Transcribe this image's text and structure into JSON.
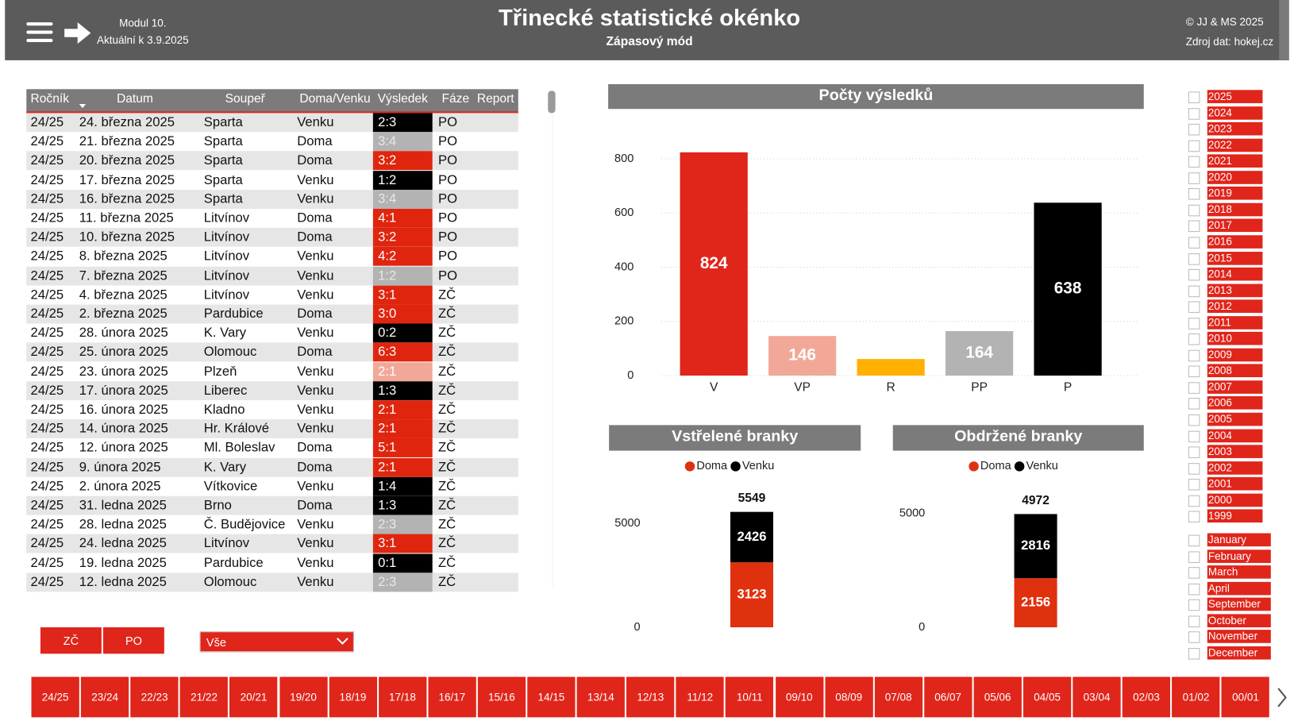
{
  "header": {
    "module": "Modul 10.",
    "updated": "Aktuální k 3.9.2025",
    "title": "Třinecké statistické okénko",
    "subtitle": "Zápasový mód",
    "copyright": "© JJ & MS 2025",
    "source": "Zdroj dat: hokej.cz"
  },
  "table": {
    "columns": [
      "Ročník",
      "Datum",
      "Soupeř",
      "Doma/Venku",
      "Výsledek",
      "Fáze",
      "Report"
    ],
    "rows": [
      [
        "24/25",
        "24. března 2025",
        "Sparta",
        "Venku",
        "2:3",
        "PO"
      ],
      [
        "24/25",
        "21. března 2025",
        "Sparta",
        "Doma",
        "3:4",
        "PO"
      ],
      [
        "24/25",
        "20. března 2025",
        "Sparta",
        "Doma",
        "3:2",
        "PO"
      ],
      [
        "24/25",
        "17. března 2025",
        "Sparta",
        "Venku",
        "1:2",
        "PO"
      ],
      [
        "24/25",
        "16. března 2025",
        "Sparta",
        "Venku",
        "3:4",
        "PO"
      ],
      [
        "24/25",
        "11. března 2025",
        "Litvínov",
        "Doma",
        "4:1",
        "PO"
      ],
      [
        "24/25",
        "10. března 2025",
        "Litvínov",
        "Doma",
        "3:2",
        "PO"
      ],
      [
        "24/25",
        "8. března 2025",
        "Litvínov",
        "Venku",
        "4:2",
        "PO"
      ],
      [
        "24/25",
        "7. března 2025",
        "Litvínov",
        "Venku",
        "1:2",
        "PO"
      ],
      [
        "24/25",
        "4. března 2025",
        "Litvínov",
        "Venku",
        "3:1",
        "ZČ"
      ],
      [
        "24/25",
        "2. března 2025",
        "Pardubice",
        "Doma",
        "3:0",
        "ZČ"
      ],
      [
        "24/25",
        "28. února 2025",
        "K. Vary",
        "Venku",
        "0:2",
        "ZČ"
      ],
      [
        "24/25",
        "25. února 2025",
        "Olomouc",
        "Doma",
        "6:3",
        "ZČ"
      ],
      [
        "24/25",
        "23. února 2025",
        "Plzeň",
        "Venku",
        "2:1",
        "ZČ"
      ],
      [
        "24/25",
        "17. února 2025",
        "Liberec",
        "Venku",
        "1:3",
        "ZČ"
      ],
      [
        "24/25",
        "16. února 2025",
        "Kladno",
        "Venku",
        "2:1",
        "ZČ"
      ],
      [
        "24/25",
        "14. února 2025",
        "Hr. Králové",
        "Venku",
        "2:1",
        "ZČ"
      ],
      [
        "24/25",
        "12. února 2025",
        "Ml. Boleslav",
        "Doma",
        "5:1",
        "ZČ"
      ],
      [
        "24/25",
        "9. února 2025",
        "K. Vary",
        "Doma",
        "2:1",
        "ZČ"
      ],
      [
        "24/25",
        "2. února 2025",
        "Vítkovice",
        "Venku",
        "1:4",
        "ZČ"
      ],
      [
        "24/25",
        "31. ledna 2025",
        "Brno",
        "Doma",
        "1:3",
        "ZČ"
      ],
      [
        "24/25",
        "28. ledna 2025",
        "Č. Budějovice",
        "Venku",
        "2:3",
        "ZČ"
      ],
      [
        "24/25",
        "24. ledna 2025",
        "Litvínov",
        "Venku",
        "3:1",
        "ZČ"
      ],
      [
        "24/25",
        "19. ledna 2025",
        "Pardubice",
        "Venku",
        "0:1",
        "ZČ"
      ],
      [
        "24/25",
        "12. ledna 2025",
        "Olomouc",
        "Venku",
        "2:3",
        "ZČ"
      ]
    ],
    "result_colors": [
      "#000000",
      "#b3b3b3",
      "#e0250f",
      "#000000",
      "#b3b3b3",
      "#e0250f",
      "#e0250f",
      "#e0250f",
      "#b3b3b3",
      "#e0250f",
      "#e0250f",
      "#000000",
      "#e0250f",
      "#f2a898",
      "#000000",
      "#e0250f",
      "#e0250f",
      "#e0250f",
      "#e0250f",
      "#000000",
      "#000000",
      "#b3b3b3",
      "#e0250f",
      "#000000",
      "#b3b3b3"
    ]
  },
  "results_chart": {
    "type": "bar",
    "title": "Počty výsledků",
    "categories": [
      "V",
      "VP",
      "R",
      "PP",
      "P"
    ],
    "values": [
      824,
      146,
      61,
      164,
      638
    ],
    "colors": [
      "#e0251b",
      "#f2a898",
      "#ffb000",
      "#b3b3b3",
      "#000000"
    ],
    "ylim": [
      0,
      850
    ],
    "yticks": [
      0,
      200,
      400,
      600,
      800
    ],
    "grid": true
  },
  "goals_for_chart": {
    "type": "stacked_bar",
    "title": "Vstřelené branky",
    "series": [
      {
        "name": "Doma",
        "color": "#e0310f",
        "values": [
          3123
        ]
      },
      {
        "name": "Venku",
        "color": "#000000",
        "values": [
          2426
        ]
      }
    ],
    "totals": [
      5549
    ],
    "ylim": [
      0,
      6000
    ],
    "yticks": [
      0,
      5000
    ]
  },
  "goals_against_chart": {
    "type": "stacked_bar",
    "title": "Obdržené branky",
    "series": [
      {
        "name": "Doma",
        "color": "#e0310f",
        "values": [
          2156
        ]
      },
      {
        "name": "Venku",
        "color": "#000000",
        "values": [
          2816
        ]
      }
    ],
    "totals": [
      4972
    ],
    "ylim": [
      0,
      5500
    ],
    "yticks": [
      0,
      5000
    ]
  },
  "year_filter": [
    "2025",
    "2024",
    "2023",
    "2022",
    "2021",
    "2020",
    "2019",
    "2018",
    "2017",
    "2016",
    "2015",
    "2014",
    "2013",
    "2012",
    "2011",
    "2010",
    "2009",
    "2008",
    "2007",
    "2006",
    "2005",
    "2004",
    "2003",
    "2002",
    "2001",
    "2000",
    "1999"
  ],
  "month_filter": [
    "January",
    "February",
    "March",
    "April",
    "September",
    "October",
    "November",
    "December"
  ],
  "phase_buttons": [
    "ZČ",
    "PO"
  ],
  "dropdown": "Vše",
  "season_buttons": [
    "24/25",
    "23/24",
    "22/23",
    "21/22",
    "20/21",
    "19/20",
    "18/19",
    "17/18",
    "16/17",
    "15/16",
    "14/15",
    "13/14",
    "12/13",
    "11/12",
    "10/11",
    "09/10",
    "08/09",
    "07/08",
    "06/07",
    "05/06",
    "04/05",
    "03/04",
    "02/03",
    "01/02",
    "00/01"
  ]
}
